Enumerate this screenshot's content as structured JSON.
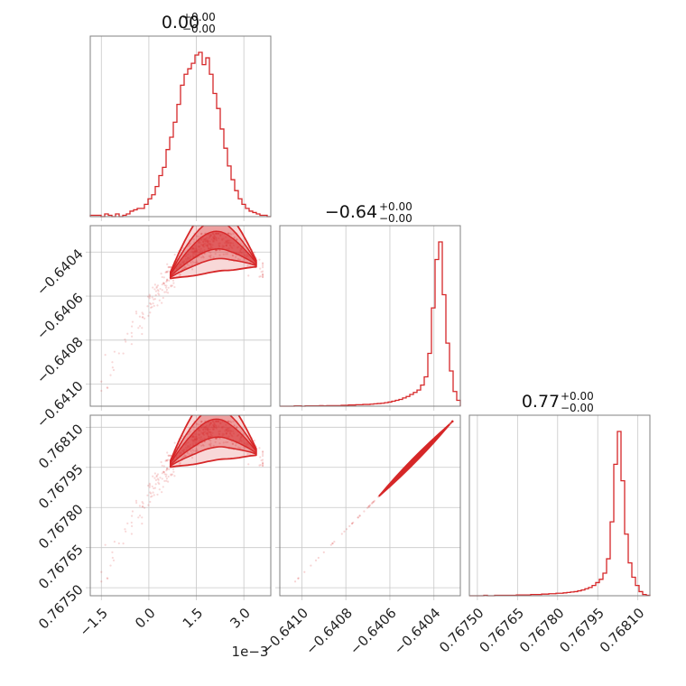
{
  "chart_data": {
    "type": "corner",
    "color": "#d62728",
    "parameters": [
      {
        "title_main": "0.00",
        "title_plus": "+0.00",
        "title_minus": "−0.00",
        "range": [
          -0.00185,
          0.00385
        ],
        "ticks": [
          -0.0015,
          0.0,
          0.0015,
          0.003
        ],
        "tick_labels": [
          "−1.5",
          "0.0",
          "1.5",
          "3.0"
        ],
        "offset_label": "1e−3",
        "mode": 0.0019,
        "hist": [
          1,
          1,
          1,
          0,
          2,
          1,
          0,
          2,
          0,
          1,
          2,
          4,
          5,
          6,
          6,
          9,
          13,
          16,
          22,
          30,
          36,
          49,
          58,
          69,
          82,
          96,
          104,
          108,
          112,
          118,
          120,
          111,
          116,
          104,
          90,
          79,
          64,
          50,
          37,
          27,
          19,
          13,
          9,
          6,
          4,
          3,
          2,
          1,
          1,
          0
        ]
      },
      {
        "title_main": "−0.64",
        "title_plus": "+0.00",
        "title_minus": "−0.00",
        "range": [
          -0.6411,
          -0.64028
        ],
        "ticks": [
          -0.641,
          -0.6408,
          -0.6406,
          -0.6404
        ],
        "tick_labels": [
          "−0.6410",
          "−0.6408",
          "−0.6406",
          "−0.6404"
        ],
        "mode": -0.64037,
        "hist": [
          0,
          0,
          0,
          0,
          1,
          1,
          0,
          1,
          1,
          1,
          1,
          2,
          1,
          2,
          2,
          2,
          2,
          3,
          3,
          4,
          4,
          5,
          5,
          6,
          6,
          7,
          8,
          9,
          10,
          12,
          14,
          17,
          20,
          23,
          28,
          33,
          40,
          47,
          55,
          72,
          100,
          180,
          335,
          500,
          560,
          380,
          215,
          120,
          50,
          20
        ]
      },
      {
        "title_main": "0.77",
        "title_plus": "+0.00",
        "title_minus": "−0.00",
        "range": [
          0.76747,
          0.768145
        ],
        "ticks": [
          0.7675,
          0.76765,
          0.7678,
          0.76795,
          0.7681
        ],
        "tick_labels": [
          "0.76750",
          "0.76765",
          "0.76780",
          "0.76795",
          "0.76810"
        ],
        "mode": 0.76802,
        "hist": [
          0,
          0,
          0,
          0,
          1,
          0,
          0,
          1,
          1,
          1,
          1,
          1,
          1,
          2,
          2,
          2,
          2,
          3,
          3,
          3,
          4,
          4,
          5,
          5,
          6,
          6,
          7,
          8,
          9,
          10,
          12,
          14,
          17,
          20,
          25,
          32,
          40,
          55,
          90,
          180,
          320,
          400,
          280,
          150,
          80,
          45,
          25,
          10,
          3,
          1
        ]
      }
    ]
  }
}
